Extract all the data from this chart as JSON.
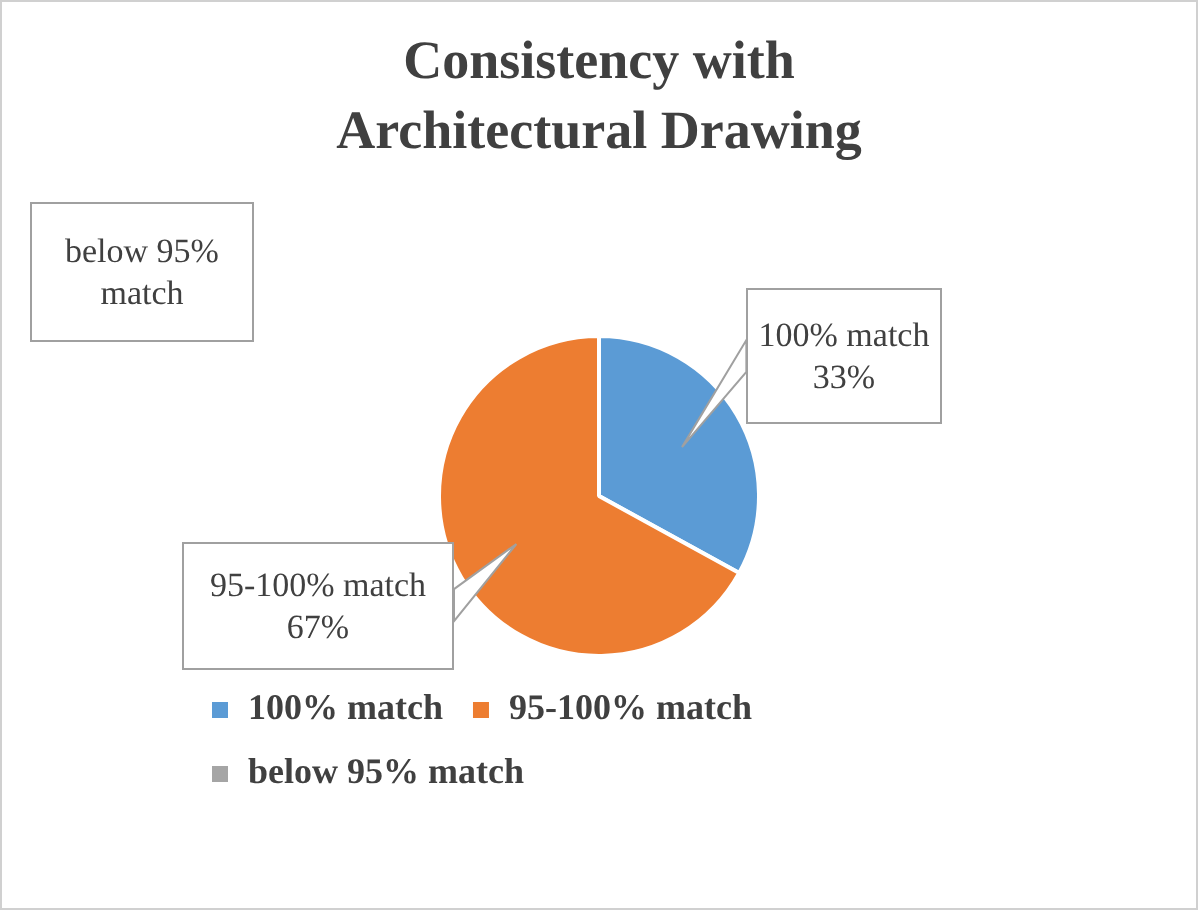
{
  "chart_data": {
    "type": "pie",
    "title": "Consistency with Architectural Drawing",
    "categories": [
      "100% match",
      "95-100% match",
      "below 95% match"
    ],
    "values": [
      33,
      67,
      0
    ],
    "value_labels": [
      "33%",
      "67%",
      null
    ],
    "colors": [
      "#5b9bd5",
      "#ed7d31",
      "#a5a5a5"
    ],
    "legend": "bottom"
  }
}
